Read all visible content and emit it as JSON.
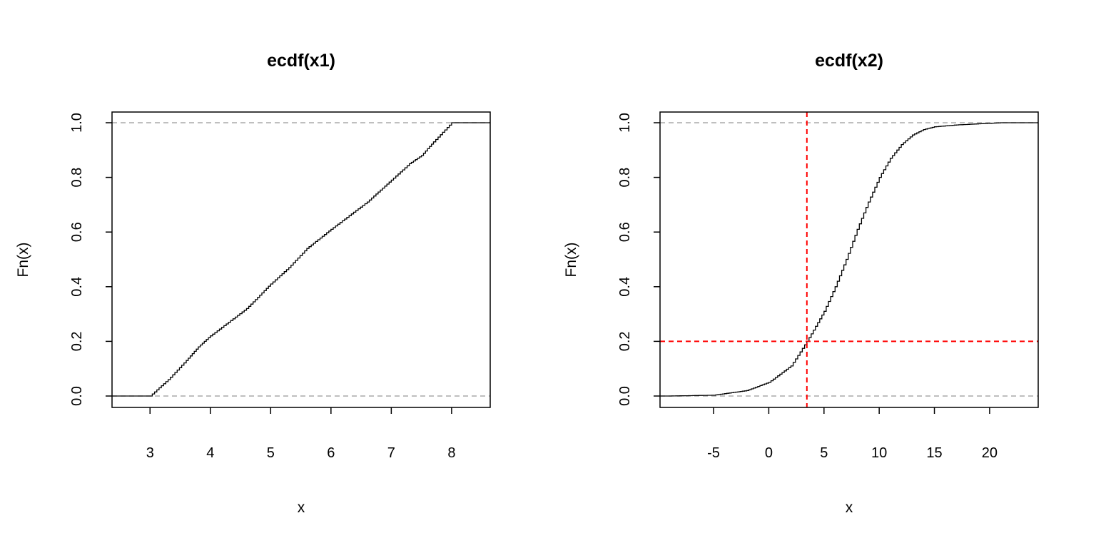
{
  "chart_data": [
    {
      "type": "line",
      "title": "ecdf(x1)",
      "xlabel": "x",
      "ylabel": "Fn(x)",
      "xlim": [
        2.37,
        8.64
      ],
      "ylim": [
        0,
        1
      ],
      "xticks": [
        3,
        4,
        5,
        6,
        7,
        8
      ],
      "xtick_labels": [
        "3",
        "4",
        "5",
        "6",
        "7",
        "8"
      ],
      "yticks": [
        0,
        0.2,
        0.4,
        0.6,
        0.8,
        1
      ],
      "ytick_labels": [
        "0.0",
        "0.2",
        "0.4",
        "0.6",
        "0.8",
        "1.0"
      ],
      "grid": false,
      "hlines_dashed_gray": [
        0,
        1
      ],
      "series": [
        {
          "name": "ecdf(x1)",
          "color": "#000000",
          "x": [
            3.0,
            3.3,
            3.6,
            3.8,
            4.0,
            4.3,
            4.6,
            5.0,
            5.3,
            5.6,
            6.0,
            6.3,
            6.6,
            7.0,
            7.3,
            7.5,
            7.7,
            8.0
          ],
          "y": [
            0.0,
            0.06,
            0.13,
            0.18,
            0.22,
            0.27,
            0.32,
            0.41,
            0.47,
            0.54,
            0.61,
            0.66,
            0.71,
            0.79,
            0.85,
            0.88,
            0.93,
            1.0
          ]
        }
      ]
    },
    {
      "type": "line",
      "title": "ecdf(x2)",
      "xlabel": "x",
      "ylabel": "Fn(x)",
      "xlim": [
        -9.85,
        24.4
      ],
      "ylim": [
        0,
        1
      ],
      "xticks": [
        -5,
        0,
        5,
        10,
        15,
        20
      ],
      "xtick_labels": [
        "-5",
        "0",
        "5",
        "10",
        "15",
        "20"
      ],
      "yticks": [
        0,
        0.2,
        0.4,
        0.6,
        0.8,
        1
      ],
      "ytick_labels": [
        "0.0",
        "0.2",
        "0.4",
        "0.6",
        "0.8",
        "1.0"
      ],
      "grid": false,
      "hlines_dashed_gray": [
        0,
        1
      ],
      "reference_lines": {
        "color": "#FF0000",
        "vline_x": 3.45,
        "hline_y": 0.2
      },
      "series": [
        {
          "name": "ecdf(x2)",
          "color": "#000000",
          "x": [
            -9,
            -5,
            -2,
            0,
            2,
            3.45,
            5,
            6,
            7,
            8,
            9,
            10,
            11,
            12,
            13,
            14,
            15,
            17,
            19,
            21
          ],
          "y": [
            0,
            0.003,
            0.02,
            0.05,
            0.11,
            0.2,
            0.31,
            0.4,
            0.5,
            0.61,
            0.71,
            0.8,
            0.87,
            0.92,
            0.955,
            0.975,
            0.985,
            0.992,
            0.996,
            1.0
          ]
        }
      ]
    }
  ]
}
